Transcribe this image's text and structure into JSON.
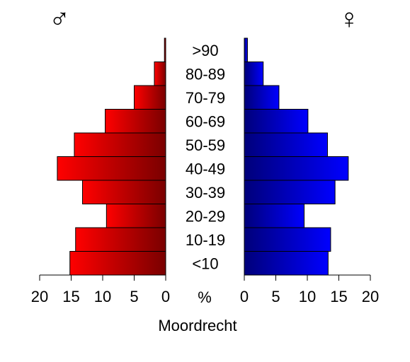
{
  "chart_data": {
    "type": "bar",
    "subtype": "population-pyramid",
    "title": "Moordrecht",
    "unit_label": "%",
    "categories": [
      "<10",
      "10-19",
      "20-29",
      "30-39",
      "40-49",
      "50-59",
      "60-69",
      "70-79",
      "80-89",
      ">90"
    ],
    "series": [
      {
        "symbol": "♂",
        "values": [
          15.2,
          14.3,
          9.4,
          13.2,
          17.2,
          14.5,
          9.6,
          5.0,
          1.8,
          0.2
        ],
        "color_light": "#ff0000",
        "color_dark": "#7a0000"
      },
      {
        "symbol": "♀",
        "values": [
          13.3,
          13.7,
          9.5,
          14.4,
          16.5,
          13.2,
          10.1,
          5.5,
          3.0,
          0.5
        ],
        "color_light": "#0000ff",
        "color_dark": "#00007a"
      }
    ],
    "xlim": [
      0,
      20
    ],
    "x_ticks": [
      20,
      15,
      10,
      5,
      0
    ],
    "x_ticks_right": [
      0,
      5,
      10,
      15,
      20
    ]
  }
}
